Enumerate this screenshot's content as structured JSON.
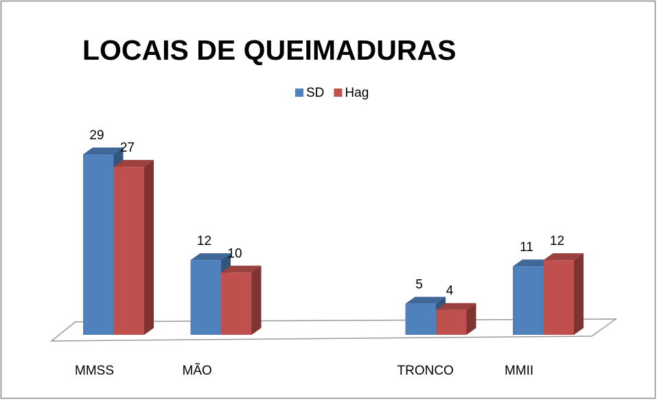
{
  "chart_data": {
    "type": "bar3d",
    "title": "LOCAIS DE QUEIMADURAS",
    "categories": [
      "MMSS",
      "MÃO",
      null,
      "TRONCO",
      "MMII"
    ],
    "series": [
      {
        "name": "SD",
        "color": "#4f81bd",
        "values": [
          29,
          12,
          null,
          5,
          11
        ]
      },
      {
        "name": "Hag",
        "color": "#c0504d",
        "values": [
          27,
          10,
          null,
          4,
          12
        ]
      }
    ],
    "legend": "top"
  }
}
